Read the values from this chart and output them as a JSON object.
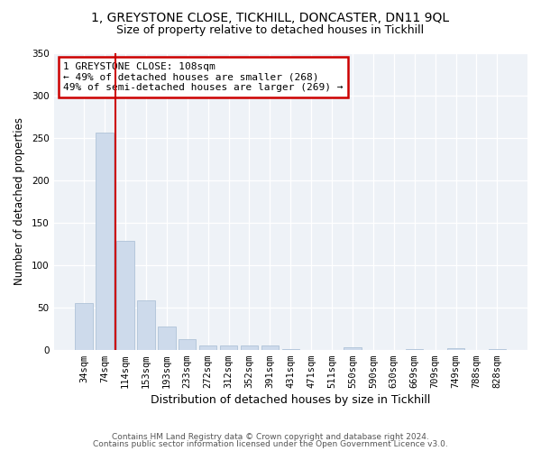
{
  "title1": "1, GREYSTONE CLOSE, TICKHILL, DONCASTER, DN11 9QL",
  "title2": "Size of property relative to detached houses in Tickhill",
  "xlabel": "Distribution of detached houses by size in Tickhill",
  "ylabel": "Number of detached properties",
  "bar_labels": [
    "34sqm",
    "74sqm",
    "114sqm",
    "153sqm",
    "193sqm",
    "233sqm",
    "272sqm",
    "312sqm",
    "352sqm",
    "391sqm",
    "431sqm",
    "471sqm",
    "511sqm",
    "550sqm",
    "590sqm",
    "630sqm",
    "669sqm",
    "709sqm",
    "749sqm",
    "788sqm",
    "828sqm"
  ],
  "bar_values": [
    55,
    256,
    128,
    58,
    27,
    12,
    5,
    5,
    5,
    5,
    1,
    0,
    0,
    3,
    0,
    0,
    1,
    0,
    2,
    0,
    1
  ],
  "bar_color": "#cddaeb",
  "bar_edgecolor": "#afc3d8",
  "vline_x": 1.5,
  "vline_color": "#cc0000",
  "annotation_text": "1 GREYSTONE CLOSE: 108sqm\n← 49% of detached houses are smaller (268)\n49% of semi-detached houses are larger (269) →",
  "annotation_box_edgecolor": "#cc0000",
  "ylim": [
    0,
    350
  ],
  "yticks": [
    0,
    50,
    100,
    150,
    200,
    250,
    300,
    350
  ],
  "footer1": "Contains HM Land Registry data © Crown copyright and database right 2024.",
  "footer2": "Contains public sector information licensed under the Open Government Licence v3.0.",
  "background_color": "#eef2f7",
  "title1_fontsize": 10,
  "title2_fontsize": 9,
  "xlabel_fontsize": 9,
  "ylabel_fontsize": 8.5,
  "tick_fontsize": 7.5,
  "footer_fontsize": 6.5,
  "annot_fontsize": 8
}
